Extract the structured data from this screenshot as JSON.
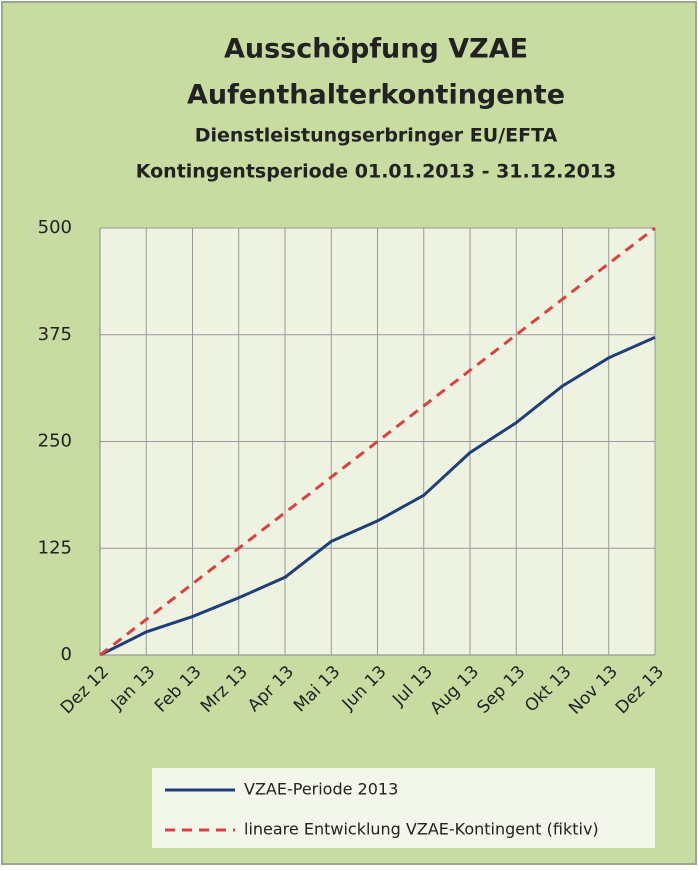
{
  "chart_data": {
    "type": "line",
    "title": "Ausschöpfung VZAE",
    "subtitle": "Aufenthalterkontingente",
    "subtitle2": "Dienstleistungserbringer EU/EFTA",
    "subtitle3": "Kontingentsperiode 01.01.2013 - 31.12.2013",
    "categories": [
      "Dez 12",
      "Jan 13",
      "Feb 13",
      "Mrz 13",
      "Apr 13",
      "Mai 13",
      "Jun 13",
      "Jul 13",
      "Aug 13",
      "Sep 13",
      "Okt 13",
      "Nov 13",
      "Dez 13"
    ],
    "series": [
      {
        "name": "VZAE-Periode 2013",
        "color": "#1f3f7a",
        "line_style": "solid",
        "values": [
          0,
          27,
          45,
          67,
          91,
          133,
          157,
          187,
          237,
          272,
          315,
          348,
          372
        ]
      },
      {
        "name": "lineare Entwicklung VZAE-Kontingent (fiktiv)",
        "color": "#d9423e",
        "line_style": "dashed",
        "values": [
          0,
          41.7,
          83.3,
          125,
          166.7,
          208.3,
          250,
          291.7,
          333.3,
          375,
          416.7,
          458.3,
          500
        ]
      }
    ],
    "ylim": [
      0,
      500
    ],
    "yticks": [
      0,
      125,
      250,
      375,
      500
    ],
    "grid": true,
    "legend": "bottom"
  }
}
